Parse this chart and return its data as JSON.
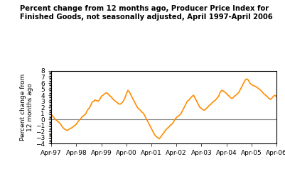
{
  "title": "Percent change from 12 months ago, Producer Price Index for\nFinished Goods, not seasonally adjusted, April 1997-April 2006",
  "ylabel": "Percent change from\n12 months ago",
  "line_color": "#FF8C00",
  "background_color": "#ffffff",
  "ylim": [
    -4,
    8
  ],
  "yticks": [
    -4,
    -3,
    -2,
    -1,
    0,
    1,
    2,
    3,
    4,
    5,
    6,
    7,
    8
  ],
  "xtick_labels": [
    "Apr-97",
    "Apr-98",
    "Apr-99",
    "Apr-00",
    "Apr-01",
    "Apr-02",
    "Apr-03",
    "Apr-04",
    "Apr-05",
    "Apr-06"
  ],
  "values": [
    0.8,
    0.5,
    0.2,
    -0.1,
    -0.3,
    -0.5,
    -0.8,
    -1.2,
    -1.5,
    -1.7,
    -1.8,
    -1.7,
    -1.5,
    -1.4,
    -1.2,
    -1.0,
    -0.8,
    -0.4,
    -0.1,
    0.2,
    0.5,
    0.7,
    0.9,
    1.5,
    1.8,
    2.2,
    2.8,
    3.0,
    3.2,
    3.1,
    3.0,
    3.3,
    3.8,
    4.0,
    4.2,
    4.4,
    4.3,
    4.0,
    3.8,
    3.5,
    3.2,
    3.0,
    2.8,
    2.6,
    2.5,
    2.7,
    3.0,
    3.5,
    4.2,
    4.8,
    4.5,
    4.0,
    3.5,
    3.0,
    2.5,
    2.0,
    1.7,
    1.5,
    1.2,
    1.0,
    0.5,
    0.0,
    -0.5,
    -1.0,
    -1.5,
    -2.0,
    -2.5,
    -2.8,
    -3.0,
    -3.2,
    -2.9,
    -2.5,
    -2.2,
    -1.8,
    -1.5,
    -1.3,
    -1.0,
    -0.8,
    -0.5,
    0.0,
    0.3,
    0.5,
    0.7,
    1.0,
    1.5,
    2.0,
    2.5,
    3.0,
    3.2,
    3.5,
    3.8,
    4.0,
    3.5,
    3.0,
    2.5,
    2.0,
    1.8,
    1.6,
    1.5,
    1.8,
    2.0,
    2.3,
    2.5,
    2.8,
    3.0,
    3.2,
    3.5,
    3.8,
    4.5,
    4.8,
    4.7,
    4.5,
    4.3,
    4.0,
    3.8,
    3.5,
    3.5,
    3.8,
    4.0,
    4.2,
    4.5,
    5.0,
    5.5,
    6.0,
    6.5,
    6.7,
    6.5,
    6.0,
    5.8,
    5.6,
    5.5,
    5.4,
    5.2,
    5.0,
    4.8,
    4.5,
    4.2,
    4.0,
    3.8,
    3.5,
    3.3,
    3.5,
    3.8,
    4.0,
    3.8
  ]
}
